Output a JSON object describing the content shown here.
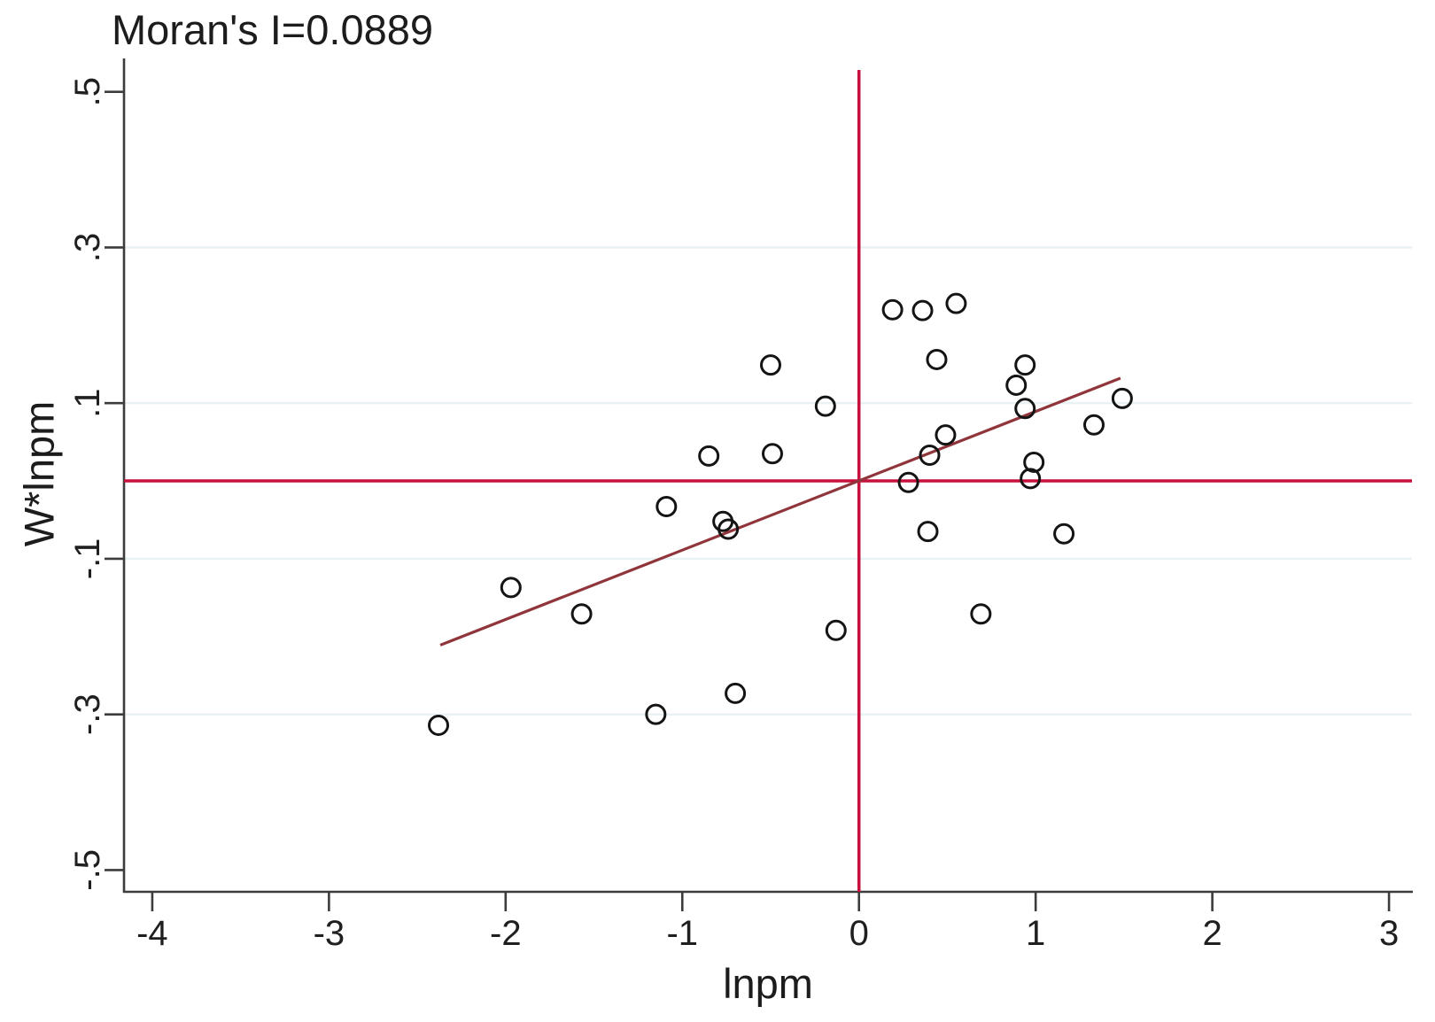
{
  "chart_data": {
    "type": "scatter",
    "title": "Moran's I=0.0889",
    "xlabel": "lnpm",
    "ylabel": "W*lnpm",
    "xlim": [
      -4.16,
      3.13
    ],
    "ylim": [
      -0.528,
      0.544
    ],
    "x_tick_values": [
      -4,
      -3,
      -2,
      -1,
      0,
      1,
      2,
      3
    ],
    "x_tick_labels": [
      "-4",
      "-3",
      "-2",
      "-1",
      "0",
      "1",
      "2",
      "3"
    ],
    "y_tick_values": [
      0.5,
      0.3,
      0.1,
      -0.1,
      -0.3,
      -0.5
    ],
    "y_tick_labels": [
      ".5",
      ".3",
      ".1",
      "-.1",
      "-.3",
      "-.5"
    ],
    "grid_y_values": [
      0.3,
      0.1,
      -0.1,
      -0.3
    ],
    "legend_position": "none",
    "reference_line_x": 0,
    "reference_line_y": 0,
    "fit_line": {
      "x1": -2.37,
      "y1": -0.211,
      "x2": 1.48,
      "y2": 0.132
    },
    "points": [
      [
        0.19,
        0.22
      ],
      [
        0.36,
        0.219
      ],
      [
        0.55,
        0.228
      ],
      [
        0.44,
        0.156
      ],
      [
        0.94,
        0.149
      ],
      [
        0.89,
        0.123
      ],
      [
        0.94,
        0.093
      ],
      [
        1.49,
        0.106
      ],
      [
        1.33,
        0.072
      ],
      [
        -0.5,
        0.149
      ],
      [
        -0.19,
        0.096
      ],
      [
        -0.85,
        0.032
      ],
      [
        -0.49,
        0.035
      ],
      [
        -1.09,
        -0.033
      ],
      [
        -0.77,
        -0.052
      ],
      [
        -0.74,
        -0.062
      ],
      [
        -0.13,
        -0.192
      ],
      [
        -2.38,
        -0.314
      ],
      [
        -1.15,
        -0.3
      ],
      [
        -0.7,
        -0.273
      ],
      [
        -1.97,
        -0.137
      ],
      [
        -1.57,
        -0.171
      ],
      [
        0.49,
        0.059
      ],
      [
        0.4,
        0.033
      ],
      [
        0.28,
        -0.002
      ],
      [
        0.99,
        0.024
      ],
      [
        0.97,
        0.003
      ],
      [
        0.39,
        -0.065
      ],
      [
        1.16,
        -0.068
      ],
      [
        0.69,
        -0.171
      ]
    ],
    "colors": {
      "reference_line": "#c8103c",
      "fit_line": "#90353b",
      "marker_outline": "#141414",
      "gridline": "#e8f1f3",
      "axis": "#3c3c3c",
      "text": "#1f1f1f"
    }
  }
}
